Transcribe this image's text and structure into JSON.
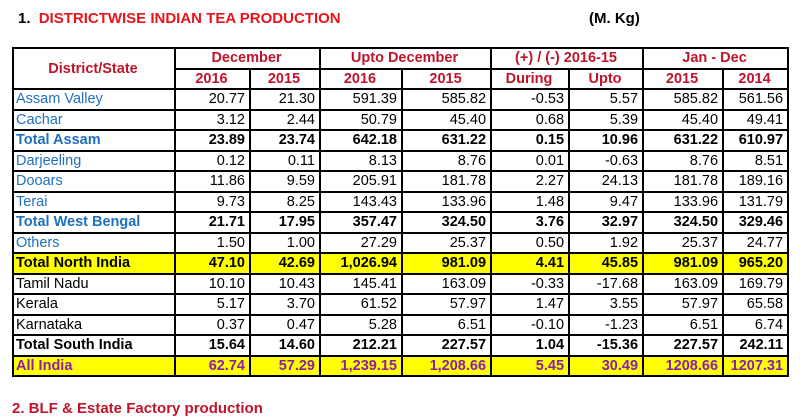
{
  "title": {
    "number": "1.",
    "text": "DISTRICTWISE INDIAN TEA PRODUCTION",
    "unit": "(M. Kg)"
  },
  "footer_partial": "2.   BLF & Estate Factory production",
  "header": {
    "district_state": "District/State",
    "groups": [
      "December",
      "Upto December",
      "(+) / (-) 2016-15",
      "Jan - Dec"
    ],
    "subcols": [
      "2016",
      "2015",
      "2016",
      "2015",
      "During",
      "Upto",
      "2015",
      "2014"
    ]
  },
  "rows": [
    {
      "name": "Assam Valley",
      "values": [
        "20.77",
        "21.30",
        "591.39",
        "585.82",
        "-0.53",
        "5.57",
        "585.82",
        "561.56"
      ]
    },
    {
      "name": "Cachar",
      "values": [
        "3.12",
        "2.44",
        "50.79",
        "45.40",
        "0.68",
        "5.39",
        "45.40",
        "49.41"
      ]
    },
    {
      "name": "Total Assam",
      "values": [
        "23.89",
        "23.74",
        "642.18",
        "631.22",
        "0.15",
        "10.96",
        "631.22",
        "610.97"
      ]
    },
    {
      "name": "Darjeeling",
      "values": [
        "0.12",
        "0.11",
        "8.13",
        "8.76",
        "0.01",
        "-0.63",
        "8.76",
        "8.51"
      ]
    },
    {
      "name": "Dooars",
      "values": [
        "11.86",
        "9.59",
        "205.91",
        "181.78",
        "2.27",
        "24.13",
        "181.78",
        "189.16"
      ]
    },
    {
      "name": "Terai",
      "values": [
        "9.73",
        "8.25",
        "143.43",
        "133.96",
        "1.48",
        "9.47",
        "133.96",
        "131.79"
      ]
    },
    {
      "name": "Total West Bengal",
      "values": [
        "21.71",
        "17.95",
        "357.47",
        "324.50",
        "3.76",
        "32.97",
        "324.50",
        "329.46"
      ]
    },
    {
      "name": "Others",
      "values": [
        "1.50",
        "1.00",
        "27.29",
        "25.37",
        "0.50",
        "1.92",
        "25.37",
        "24.77"
      ]
    },
    {
      "name": "Total North India",
      "values": [
        "47.10",
        "42.69",
        "1,026.94",
        "981.09",
        "4.41",
        "45.85",
        "981.09",
        "965.20"
      ]
    },
    {
      "name": "Tamil Nadu",
      "values": [
        "10.10",
        "10.43",
        "145.41",
        "163.09",
        "-0.33",
        "-17.68",
        "163.09",
        "169.79"
      ]
    },
    {
      "name": "Kerala",
      "values": [
        "5.17",
        "3.70",
        "61.52",
        "57.97",
        "1.47",
        "3.55",
        "57.97",
        "65.58"
      ]
    },
    {
      "name": "Karnataka",
      "values": [
        "0.37",
        "0.47",
        "5.28",
        "6.51",
        "-0.10",
        "-1.23",
        "6.51",
        "6.74"
      ]
    },
    {
      "name": "Total South India",
      "values": [
        "15.64",
        "14.60",
        "212.21",
        "227.57",
        "1.04",
        "-15.36",
        "227.57",
        "242.11"
      ]
    },
    {
      "name": "All India",
      "values": [
        "62.74",
        "57.29",
        "1,239.15",
        "1,208.66",
        "5.45",
        "30.49",
        "1208.66",
        "1207.31"
      ]
    }
  ]
}
